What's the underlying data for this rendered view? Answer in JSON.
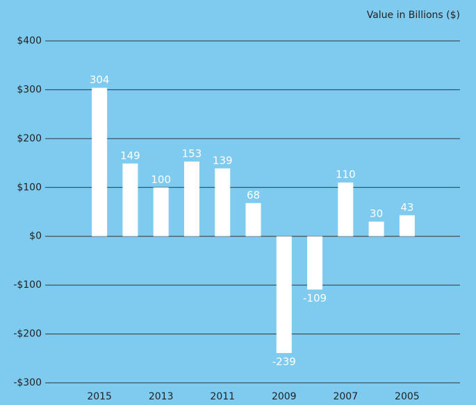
{
  "chart_data": {
    "type": "bar",
    "axis_label": "Value in Billions ($)",
    "categories": [
      "2015",
      null,
      "2013",
      null,
      "2011",
      null,
      "2009",
      null,
      "2007",
      null,
      "2005"
    ],
    "values": [
      304,
      149,
      100,
      153,
      139,
      68,
      -239,
      -109,
      110,
      30,
      43
    ],
    "color": "#ffffff",
    "background": "#7ecbef",
    "ylim": [
      -300,
      400
    ],
    "yticks": [
      {
        "value": 400,
        "label": "$400"
      },
      {
        "value": 300,
        "label": "$300"
      },
      {
        "value": 200,
        "label": "$200"
      },
      {
        "value": 100,
        "label": "$100"
      },
      {
        "value": 0,
        "label": "$0"
      },
      {
        "value": -100,
        "label": "-$100"
      },
      {
        "value": -200,
        "label": "-$200"
      },
      {
        "value": -300,
        "label": "-$300"
      }
    ],
    "grid": true
  }
}
